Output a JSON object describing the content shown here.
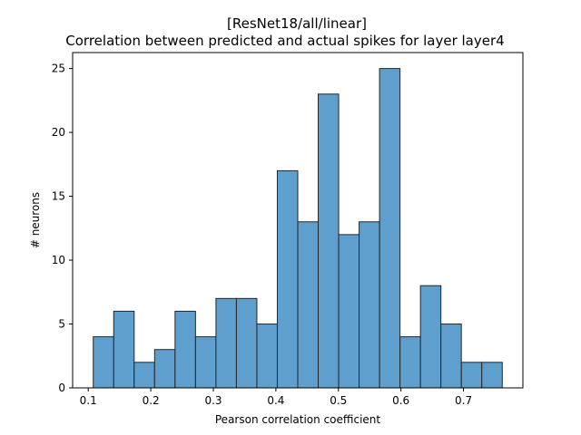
{
  "chart_data": {
    "type": "bar",
    "title_line1": "[ResNet18/all/linear]",
    "title_line2": "Correlation between predicted and actual spikes for layer layer4",
    "xlabel": "Pearson correlation coefficient",
    "ylabel": "# neurons",
    "xlim": [
      0.075,
      0.795
    ],
    "ylim": [
      0,
      26.25
    ],
    "xticks": [
      0.1,
      0.2,
      0.3,
      0.4,
      0.5,
      0.6,
      0.7
    ],
    "xtick_labels": [
      "0.1",
      "0.2",
      "0.3",
      "0.4",
      "0.5",
      "0.6",
      "0.7"
    ],
    "yticks": [
      0,
      5,
      10,
      15,
      20,
      25
    ],
    "ytick_labels": [
      "0",
      "5",
      "10",
      "15",
      "20",
      "25"
    ],
    "bin_start": 0.108,
    "bin_end": 0.762,
    "counts": [
      4,
      6,
      2,
      3,
      6,
      4,
      7,
      7,
      5,
      17,
      13,
      23,
      12,
      13,
      25,
      4,
      8,
      5,
      2,
      2
    ],
    "bar_color": "#5f9fcd",
    "edge_color": "#262626"
  }
}
